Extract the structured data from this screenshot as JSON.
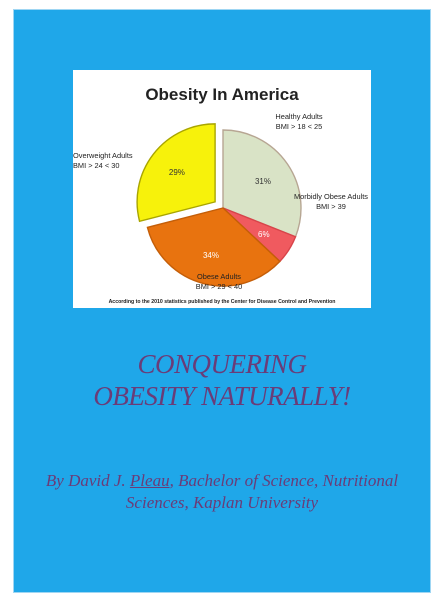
{
  "chart_data": {
    "type": "pie",
    "title": "Obesity In America",
    "slices": [
      {
        "name": "Healthy Adults",
        "range": "BMI > 18 < 25",
        "value": 31,
        "label": "31%",
        "color": "#d9e3c6",
        "stroke": "#b7a693",
        "offset": 0
      },
      {
        "name": "Morbidly Obese Adults",
        "range": "BMI > 39",
        "value": 6,
        "label": "6%",
        "color": "#f05a5f",
        "stroke": "#d8444a",
        "offset": 0
      },
      {
        "name": "Obese Adults",
        "range": "BMI > 29 < 40",
        "value": 34,
        "label": "34%",
        "color": "#e8730f",
        "stroke": "#c45e08",
        "offset": 0
      },
      {
        "name": "Overweight Adults",
        "range": "BMI > 24 < 30",
        "value": 29,
        "label": "29%",
        "color": "#f7f20b",
        "stroke": "#a9a500",
        "offset": 10
      }
    ],
    "footnote": "According to the 2010 statistics published by the Center for Disease Control and Prevention"
  },
  "book": {
    "title_line1": "CONQUERING",
    "title_line2": "OBESITY NATURALLY!",
    "byline_prefix": "By David J. ",
    "author_surname": "Pleau",
    "byline_suffix": ", Bachelor of Science, Nutritional Sciences, Kaplan University"
  },
  "colors": {
    "cover_background": "#1fa7e9",
    "title_text": "#6a3c78"
  }
}
